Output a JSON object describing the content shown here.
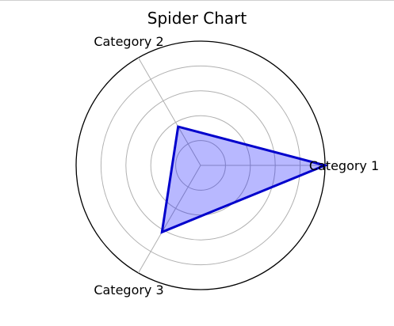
{
  "chart_data": {
    "type": "radar",
    "title": "Spider Chart",
    "categories": [
      "Category 1",
      "Category 2",
      "Category 3"
    ],
    "series": [
      {
        "values": [
          5,
          1.8,
          3.1
        ],
        "color": "#0000cc",
        "fill": "#0000ff",
        "fill_opacity": 0.28
      }
    ],
    "rlim": [
      0,
      5
    ],
    "ring_values": [
      1,
      2,
      3,
      4,
      5
    ],
    "grid": true,
    "radial_tick_labels": false,
    "grid_color": "#b0b0b0"
  }
}
